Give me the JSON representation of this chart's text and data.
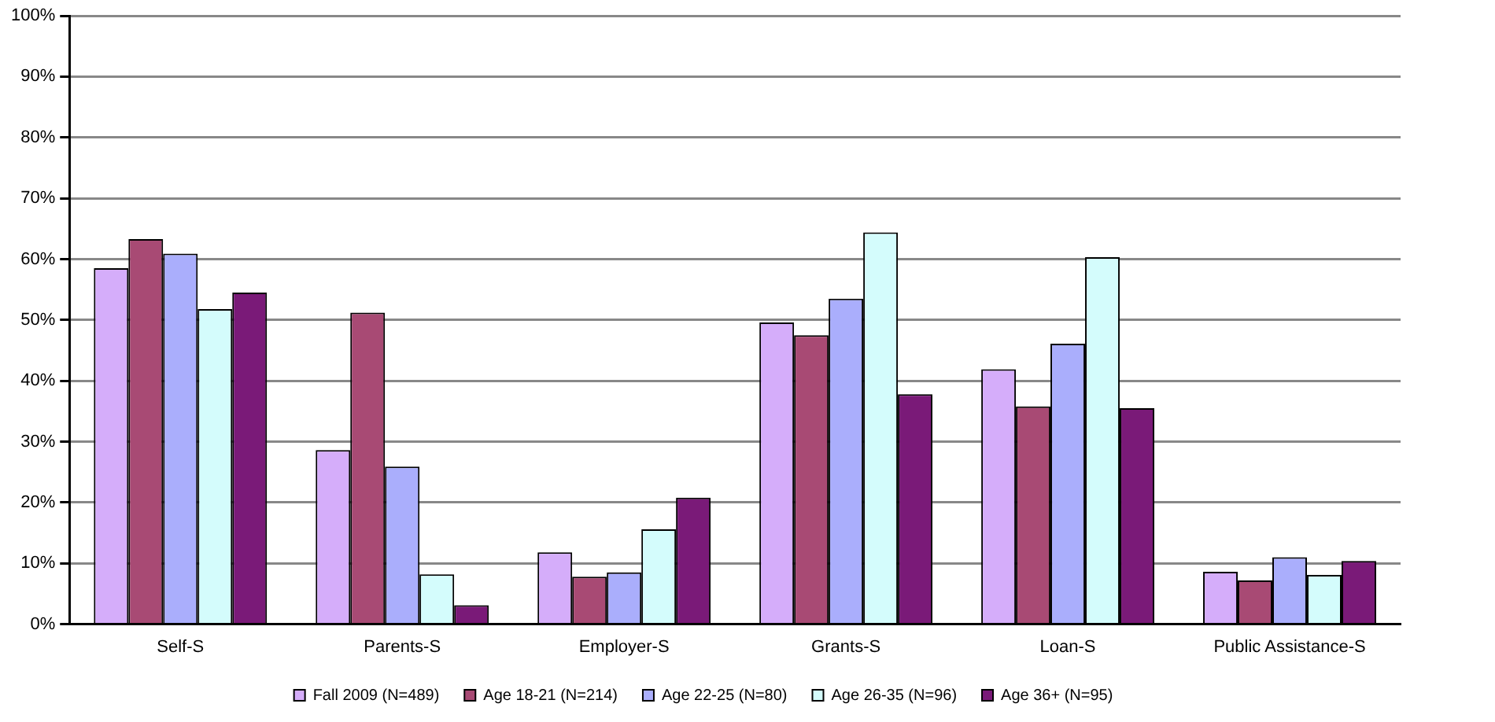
{
  "chart_data": {
    "type": "bar",
    "categories": [
      "Self-S",
      "Parents-S",
      "Employer-S",
      "Grants-S",
      "Loan-S",
      "Public Assistance-S"
    ],
    "series": [
      {
        "name": "Fall 2009 (N=489)",
        "color": "#d5adfa",
        "values": [
          58.5,
          28.6,
          11.8,
          49.6,
          41.9,
          8.6
        ]
      },
      {
        "name": "Age 18-21 (N=214)",
        "color": "#a84a74",
        "values": [
          63.3,
          51.2,
          7.8,
          47.5,
          35.8,
          7.2
        ]
      },
      {
        "name": "Age 22-25 (N=80)",
        "color": "#aaaefc",
        "values": [
          60.9,
          25.9,
          8.5,
          53.5,
          46.1,
          11.0
        ]
      },
      {
        "name": "Age 26-35 (N=96)",
        "color": "#d4fcfc",
        "values": [
          51.8,
          8.2,
          15.6,
          64.4,
          60.3,
          8.1
        ]
      },
      {
        "name": "Age 36+ (N=95)",
        "color": "#7a1a78",
        "values": [
          54.5,
          3.1,
          20.8,
          37.8,
          35.5,
          10.4
        ]
      }
    ],
    "ylim": [
      0,
      100
    ],
    "yticks": [
      {
        "value": 0,
        "label": "0%"
      },
      {
        "value": 10,
        "label": "10%"
      },
      {
        "value": 20,
        "label": "20%"
      },
      {
        "value": 30,
        "label": "30%"
      },
      {
        "value": 40,
        "label": "40%"
      },
      {
        "value": 50,
        "label": "50%"
      },
      {
        "value": 60,
        "label": "60%"
      },
      {
        "value": 70,
        "label": "70%"
      },
      {
        "value": 80,
        "label": "80%"
      },
      {
        "value": 90,
        "label": "90%"
      },
      {
        "value": 100,
        "label": "100%"
      }
    ],
    "grid": "y",
    "legend": "bottom"
  }
}
